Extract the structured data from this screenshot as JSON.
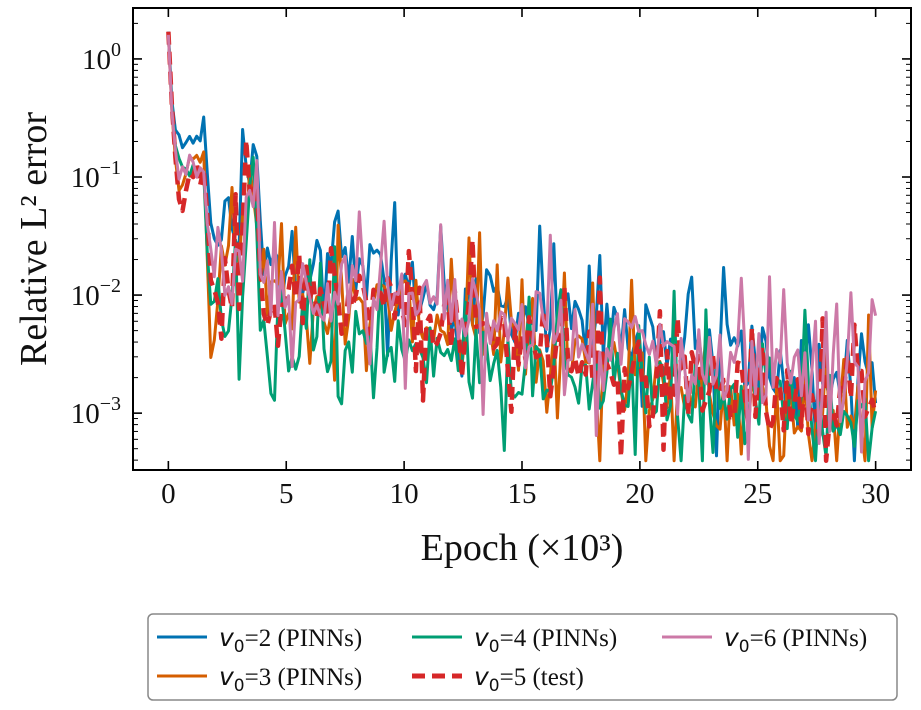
{
  "chart_data": {
    "type": "line",
    "title": "",
    "xlabel": "Epoch (×10³)",
    "ylabel": "Relative L² error",
    "x_ticks": [
      0,
      5,
      10,
      15,
      20,
      25,
      30
    ],
    "y_ticks": [
      {
        "value": 1,
        "label": "10",
        "exp": "0"
      },
      {
        "value": 0.1,
        "label": "10",
        "exp": "−1"
      },
      {
        "value": 0.01,
        "label": "10",
        "exp": "−2"
      },
      {
        "value": 0.001,
        "label": "10",
        "exp": "−3"
      }
    ],
    "xlim": [
      -1.5,
      31.5
    ],
    "ylim": [
      0.00033,
      2.7
    ],
    "yscale": "log",
    "grid": false,
    "legend_position": "bottom-outside",
    "series": [
      {
        "name": "v₀=2 (PINNs)",
        "legend_var": "v",
        "legend_sub": "0",
        "legend_rest": "=2 (PINNs)",
        "color": "#0072B2",
        "dash": false,
        "anchors": [
          [
            0,
            1.7
          ],
          [
            0.2,
            0.28
          ],
          [
            0.5,
            0.2
          ],
          [
            1.0,
            0.17
          ],
          [
            1.5,
            0.27
          ],
          [
            1.8,
            0.035
          ],
          [
            2.5,
            0.045
          ],
          [
            3.0,
            0.03
          ],
          [
            3.6,
            0.22
          ],
          [
            4.0,
            0.016
          ],
          [
            5.0,
            0.02
          ],
          [
            7.0,
            0.018
          ],
          [
            9.0,
            0.015
          ],
          [
            10.0,
            0.012
          ],
          [
            12.0,
            0.008
          ],
          [
            14.0,
            0.008
          ],
          [
            16.0,
            0.006
          ],
          [
            18.0,
            0.005
          ],
          [
            20.0,
            0.005
          ],
          [
            22.0,
            0.0035
          ],
          [
            24.0,
            0.003
          ],
          [
            26.0,
            0.0028
          ],
          [
            28.0,
            0.0025
          ],
          [
            30.0,
            0.0022
          ]
        ]
      },
      {
        "name": "v₀=3 (PINNs)",
        "legend_var": "v",
        "legend_sub": "0",
        "legend_rest": "=3 (PINNs)",
        "color": "#D55E00",
        "dash": false,
        "anchors": [
          [
            0,
            1.6
          ],
          [
            0.2,
            0.22
          ],
          [
            0.5,
            0.06
          ],
          [
            1.0,
            0.15
          ],
          [
            1.5,
            0.16
          ],
          [
            1.8,
            0.003
          ],
          [
            2.5,
            0.015
          ],
          [
            3.0,
            0.02
          ],
          [
            3.6,
            0.13
          ],
          [
            4.0,
            0.01
          ],
          [
            6.0,
            0.009
          ],
          [
            8.0,
            0.008
          ],
          [
            10.0,
            0.008
          ],
          [
            12.0,
            0.005
          ],
          [
            14.0,
            0.004
          ],
          [
            16.0,
            0.003
          ],
          [
            18.0,
            0.0025
          ],
          [
            20.0,
            0.002
          ],
          [
            22.0,
            0.0015
          ],
          [
            24.0,
            0.0013
          ],
          [
            26.0,
            0.0012
          ],
          [
            28.0,
            0.0011
          ],
          [
            30.0,
            0.0011
          ]
        ]
      },
      {
        "name": "v₀=4 (PINNs)",
        "legend_var": "v",
        "legend_sub": "0",
        "legend_rest": "=4 (PINNs)",
        "color": "#009E73",
        "dash": false,
        "anchors": [
          [
            0,
            1.6
          ],
          [
            0.2,
            0.25
          ],
          [
            0.5,
            0.1
          ],
          [
            1.0,
            0.12
          ],
          [
            1.5,
            0.1
          ],
          [
            1.8,
            0.008
          ],
          [
            2.5,
            0.008
          ],
          [
            3.0,
            0.008
          ],
          [
            3.6,
            0.12
          ],
          [
            4.0,
            0.012
          ],
          [
            4.6,
            0.0012
          ],
          [
            5.0,
            0.004
          ],
          [
            7.0,
            0.004
          ],
          [
            9.0,
            0.004
          ],
          [
            11.0,
            0.003
          ],
          [
            13.0,
            0.003
          ],
          [
            15.0,
            0.0025
          ],
          [
            17.0,
            0.002
          ],
          [
            19.0,
            0.0018
          ],
          [
            21.0,
            0.0016
          ],
          [
            23.0,
            0.0015
          ],
          [
            25.0,
            0.0014
          ],
          [
            27.0,
            0.0013
          ],
          [
            30.0,
            0.0012
          ]
        ]
      },
      {
        "name": "v₀=5 (test)",
        "legend_var": "v",
        "legend_sub": "0",
        "legend_rest": "=5 (test)",
        "color": "#D62728",
        "dash": true,
        "anchors": [
          [
            0,
            1.7
          ],
          [
            0.2,
            0.25
          ],
          [
            0.5,
            0.05
          ],
          [
            1.0,
            0.12
          ],
          [
            1.5,
            0.1
          ],
          [
            1.8,
            0.015
          ],
          [
            2.5,
            0.012
          ],
          [
            3.0,
            0.012
          ],
          [
            3.6,
            0.1
          ],
          [
            4.0,
            0.009
          ],
          [
            6.0,
            0.01
          ],
          [
            8.0,
            0.009
          ],
          [
            10.0,
            0.008
          ],
          [
            12.0,
            0.006
          ],
          [
            14.0,
            0.0045
          ],
          [
            16.0,
            0.0035
          ],
          [
            18.0,
            0.003
          ],
          [
            20.0,
            0.0025
          ],
          [
            22.0,
            0.0018
          ],
          [
            24.0,
            0.0015
          ],
          [
            26.0,
            0.0013
          ],
          [
            28.0,
            0.0012
          ],
          [
            30.0,
            0.0013
          ]
        ]
      },
      {
        "name": "v₀=6 (PINNs)",
        "legend_var": "v",
        "legend_sub": "0",
        "legend_rest": "=6 (PINNs)",
        "color": "#CC79A7",
        "dash": false,
        "anchors": [
          [
            0,
            1.6
          ],
          [
            0.2,
            0.22
          ],
          [
            0.5,
            0.1
          ],
          [
            1.0,
            0.13
          ],
          [
            1.5,
            0.1
          ],
          [
            1.8,
            0.02
          ],
          [
            2.5,
            0.015
          ],
          [
            3.0,
            0.015
          ],
          [
            3.6,
            0.1
          ],
          [
            4.0,
            0.012
          ],
          [
            6.0,
            0.012
          ],
          [
            8.0,
            0.01
          ],
          [
            10.0,
            0.01
          ],
          [
            12.0,
            0.008
          ],
          [
            14.0,
            0.007
          ],
          [
            16.0,
            0.0055
          ],
          [
            18.0,
            0.0045
          ],
          [
            20.0,
            0.004
          ],
          [
            22.0,
            0.003
          ],
          [
            24.0,
            0.0028
          ],
          [
            26.0,
            0.0025
          ],
          [
            28.0,
            0.0022
          ],
          [
            30.0,
            0.0018
          ]
        ]
      }
    ]
  }
}
